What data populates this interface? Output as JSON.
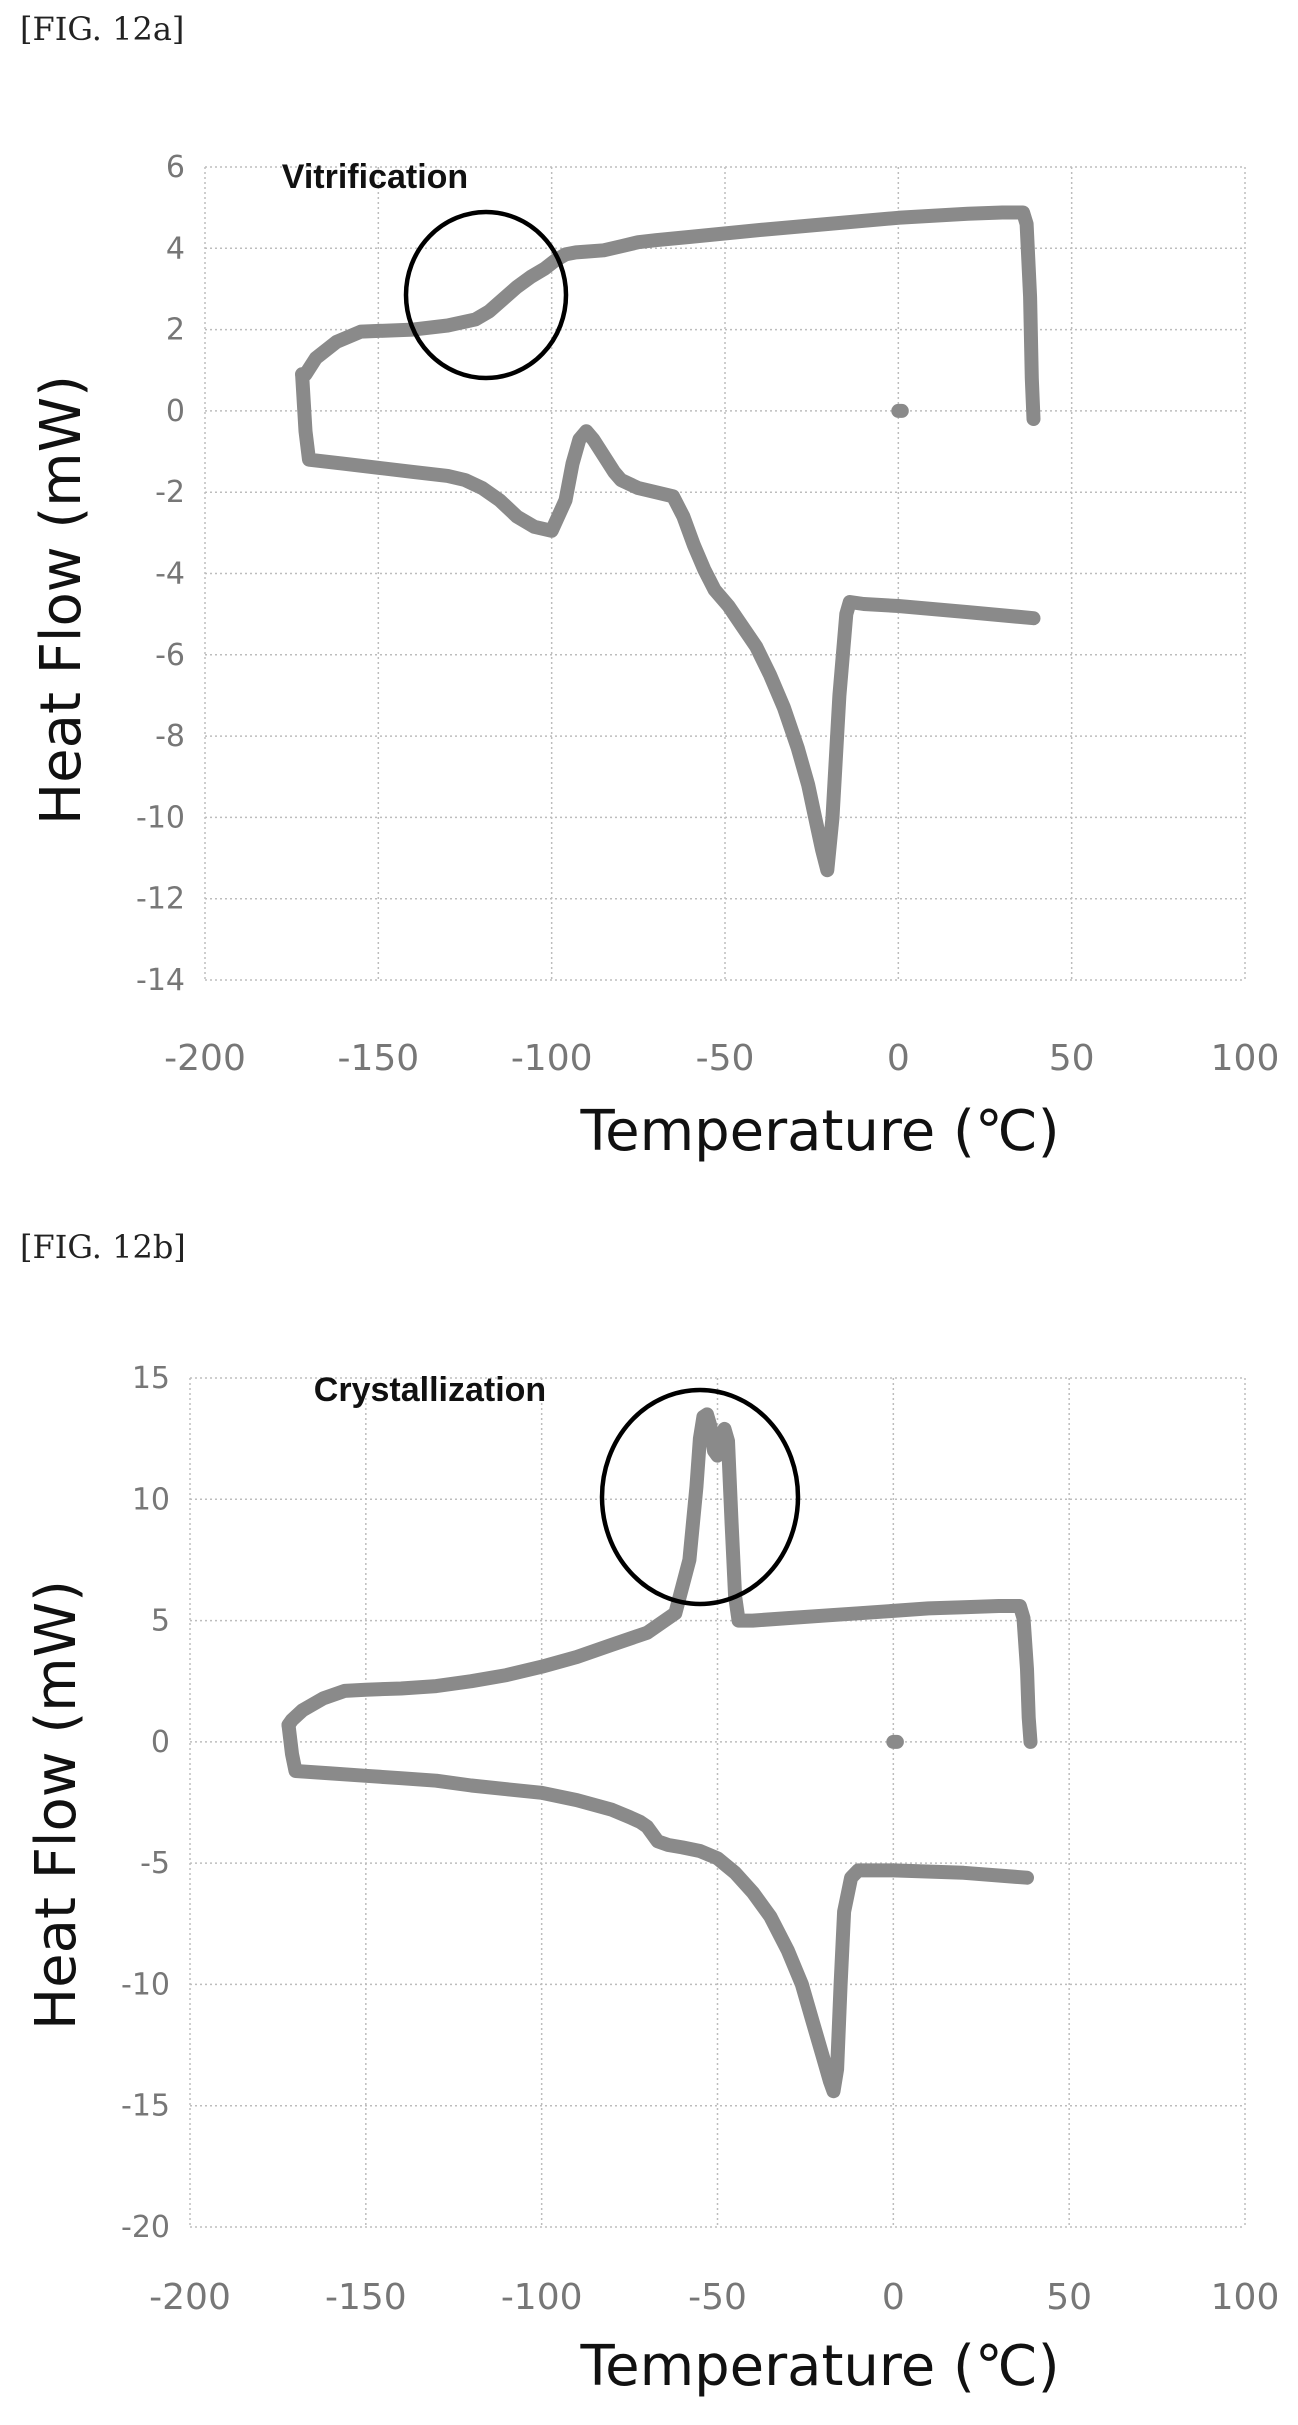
{
  "figures": [
    {
      "label": "[FIG. 12a]"
    },
    {
      "label": "[FIG. 12b]"
    }
  ],
  "chart_data": [
    {
      "type": "line",
      "xlabel": "Temperature (℃)",
      "ylabel": "Heat Flow (mW)",
      "xlim": [
        -200,
        100
      ],
      "ylim": [
        -14,
        6
      ],
      "xticks": [
        -200,
        -150,
        -100,
        -50,
        0,
        50,
        100
      ],
      "yticks": [
        -14,
        -12,
        -10,
        -8,
        -6,
        -4,
        -2,
        0,
        2,
        4,
        6
      ],
      "grid": true,
      "annotation": {
        "text": "Vitrification",
        "x": -118,
        "y": 2.8
      },
      "series_color": "#8a8a8a",
      "series": [
        {
          "x": [
            -172,
            -171,
            -168,
            -162,
            -155,
            -140,
            -130,
            -122,
            -118,
            -114,
            -110,
            -106,
            -102,
            -99,
            -96,
            -93,
            -90,
            -85,
            -80,
            -75,
            -70,
            -60,
            -40,
            -20,
            0,
            20,
            30,
            36,
            37,
            38,
            38.5,
            39
          ],
          "y": [
            0.9,
            0.9,
            1.3,
            1.7,
            1.95,
            2.0,
            2.1,
            2.25,
            2.45,
            2.75,
            3.05,
            3.3,
            3.5,
            3.7,
            3.85,
            3.9,
            3.92,
            3.95,
            4.05,
            4.15,
            4.2,
            4.28,
            4.45,
            4.6,
            4.75,
            4.85,
            4.88,
            4.88,
            4.6,
            2.8,
            0.8,
            -0.2
          ]
        },
        {
          "x": [
            -172,
            -171,
            -170,
            -160,
            -150,
            -140,
            -130,
            -125,
            -120,
            -115,
            -110,
            -105,
            -100,
            -96,
            -94,
            -92,
            -90,
            -88,
            -85,
            -82,
            -80,
            -75,
            -70,
            -65,
            -62,
            -59,
            -56,
            -53,
            -49,
            -45,
            -41,
            -37,
            -33,
            -29,
            -26,
            -24,
            -22,
            -20.5,
            -19,
            -17,
            -15,
            -14,
            -10,
            0,
            20,
            39
          ],
          "y": [
            0.9,
            -0.5,
            -1.2,
            -1.3,
            -1.4,
            -1.5,
            -1.6,
            -1.7,
            -1.9,
            -2.2,
            -2.6,
            -2.85,
            -2.95,
            -2.2,
            -1.3,
            -0.7,
            -0.5,
            -0.7,
            -1.1,
            -1.5,
            -1.7,
            -1.9,
            -2.0,
            -2.1,
            -2.6,
            -3.3,
            -3.9,
            -4.4,
            -4.8,
            -5.3,
            -5.8,
            -6.5,
            -7.3,
            -8.3,
            -9.2,
            -10.0,
            -10.8,
            -11.3,
            -10.0,
            -7.0,
            -5.0,
            -4.7,
            -4.75,
            -4.8,
            -4.95,
            -5.1
          ]
        },
        {
          "x": [
            0,
            1
          ],
          "y": [
            0,
            0
          ]
        }
      ]
    },
    {
      "type": "line",
      "xlabel": "Temperature (℃)",
      "ylabel": "Heat Flow (mW)",
      "xlim": [
        -200,
        100
      ],
      "ylim": [
        -20,
        15
      ],
      "xticks": [
        -200,
        -150,
        -100,
        -50,
        0,
        50,
        100
      ],
      "yticks": [
        -20,
        -15,
        -10,
        -5,
        0,
        5,
        10,
        15
      ],
      "grid": true,
      "annotation": {
        "text": "Crystallization",
        "x": -53,
        "y": 9.3
      },
      "series_color": "#8a8a8a",
      "series": [
        {
          "x": [
            -172,
            -171,
            -168,
            -162,
            -156,
            -150,
            -140,
            -130,
            -120,
            -110,
            -100,
            -90,
            -80,
            -70,
            -62,
            -58,
            -56,
            -55,
            -54,
            -53,
            -52,
            -51,
            -50,
            -49,
            -48,
            -47,
            -46,
            -45,
            -44,
            -42,
            -40,
            -30,
            -20,
            -10,
            0,
            10,
            20,
            30,
            36,
            37,
            38,
            38.5,
            39
          ],
          "y": [
            0.7,
            0.9,
            1.3,
            1.8,
            2.1,
            2.15,
            2.2,
            2.3,
            2.5,
            2.75,
            3.1,
            3.5,
            4.0,
            4.5,
            5.3,
            7.5,
            10.5,
            12.5,
            13.4,
            13.5,
            13.0,
            12.0,
            11.8,
            12.5,
            12.9,
            12.4,
            9.0,
            6.0,
            5.0,
            5.0,
            5.0,
            5.1,
            5.2,
            5.3,
            5.4,
            5.5,
            5.55,
            5.6,
            5.6,
            5.1,
            3.0,
            1.0,
            0.0
          ]
        },
        {
          "x": [
            -172,
            -171,
            -170,
            -160,
            -150,
            -140,
            -130,
            -120,
            -110,
            -100,
            -90,
            -80,
            -75,
            -72,
            -70,
            -67,
            -64,
            -60,
            -55,
            -50,
            -45,
            -40,
            -35,
            -30,
            -26,
            -23,
            -20,
            -18,
            -17,
            -16,
            -15,
            -14,
            -12,
            -10,
            0,
            20,
            38
          ],
          "y": [
            0.7,
            -0.5,
            -1.2,
            -1.3,
            -1.4,
            -1.5,
            -1.6,
            -1.8,
            -1.95,
            -2.1,
            -2.4,
            -2.8,
            -3.1,
            -3.3,
            -3.5,
            -4.1,
            -4.25,
            -4.35,
            -4.5,
            -4.8,
            -5.4,
            -6.2,
            -7.2,
            -8.6,
            -10.0,
            -11.5,
            -13.0,
            -14.0,
            -14.4,
            -13.5,
            -10.0,
            -7.0,
            -5.6,
            -5.3,
            -5.3,
            -5.4,
            -5.6
          ]
        },
        {
          "x": [
            0,
            1
          ],
          "y": [
            0,
            0
          ]
        }
      ]
    }
  ]
}
